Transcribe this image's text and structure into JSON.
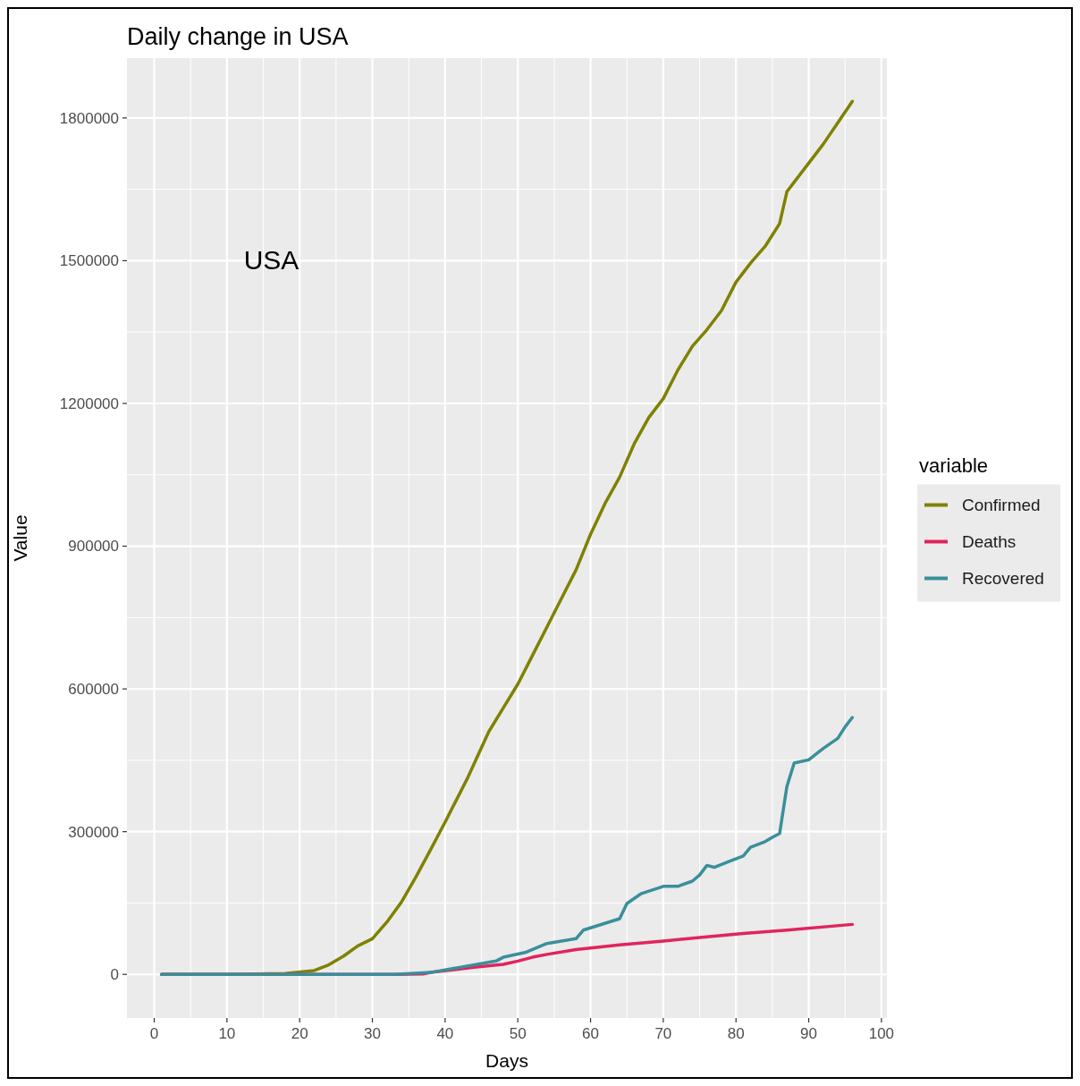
{
  "chart_data": {
    "type": "line",
    "title": "Daily change in USA",
    "xlabel": "Days",
    "ylabel": "Value",
    "legend_title": "variable",
    "annotations": [
      "USA"
    ],
    "xlim": [
      -3.75,
      100.75
    ],
    "xticks": [
      0,
      10,
      20,
      30,
      40,
      50,
      60,
      70,
      80,
      90,
      100
    ],
    "ylim": [
      -91700,
      1925700
    ],
    "yticks": [
      0,
      300000,
      600000,
      900000,
      1200000,
      1500000,
      1800000
    ],
    "grid": true,
    "legend": "right",
    "line_style": "solid",
    "marker": "none",
    "series": [
      {
        "name": "Confirmed",
        "color": "#808000",
        "x": [
          1,
          10,
          18,
          22,
          24,
          26,
          28,
          30,
          32,
          34,
          36,
          38,
          40,
          43,
          46,
          48,
          50,
          52,
          54,
          56,
          58,
          60,
          62,
          64,
          66,
          68,
          70,
          72,
          74,
          76,
          78,
          80,
          82,
          84,
          86,
          87,
          88,
          90,
          92,
          94,
          96
        ],
        "values": [
          0,
          0,
          2000,
          8000,
          20000,
          38000,
          60000,
          75000,
          110000,
          152000,
          205000,
          262000,
          320000,
          410000,
          510000,
          560000,
          610000,
          670000,
          730000,
          790000,
          850000,
          925000,
          990000,
          1045000,
          1115000,
          1170000,
          1210000,
          1270000,
          1320000,
          1355000,
          1395000,
          1455000,
          1495000,
          1530000,
          1578000,
          1645000,
          1665000,
          1705000,
          1745000,
          1790000,
          1835000
        ]
      },
      {
        "name": "Deaths",
        "color": "#e0245e",
        "x": [
          1,
          33,
          37,
          38,
          44,
          48,
          50,
          52,
          54,
          58,
          64,
          70,
          76,
          81,
          87,
          96
        ],
        "values": [
          0,
          0,
          1000,
          4000,
          15000,
          21000,
          28000,
          36000,
          42000,
          52000,
          62000,
          70000,
          79000,
          86000,
          93000,
          105000
        ]
      },
      {
        "name": "Recovered",
        "color": "#3a8f9a",
        "x": [
          1,
          33,
          38,
          47,
          48,
          51,
          54,
          58,
          59,
          64,
          65,
          67,
          70,
          72,
          74,
          75,
          76,
          77,
          79,
          81,
          82,
          84,
          85,
          86,
          87,
          88,
          90,
          92,
          94,
          95,
          96
        ],
        "values": [
          0,
          0,
          4000,
          28000,
          36000,
          46000,
          65000,
          75000,
          93000,
          117000,
          149000,
          170000,
          185000,
          185000,
          196000,
          209000,
          229000,
          225000,
          237000,
          249000,
          267000,
          279000,
          288000,
          296000,
          395000,
          444000,
          451000,
          475000,
          496000,
          520000,
          540000
        ]
      }
    ]
  }
}
